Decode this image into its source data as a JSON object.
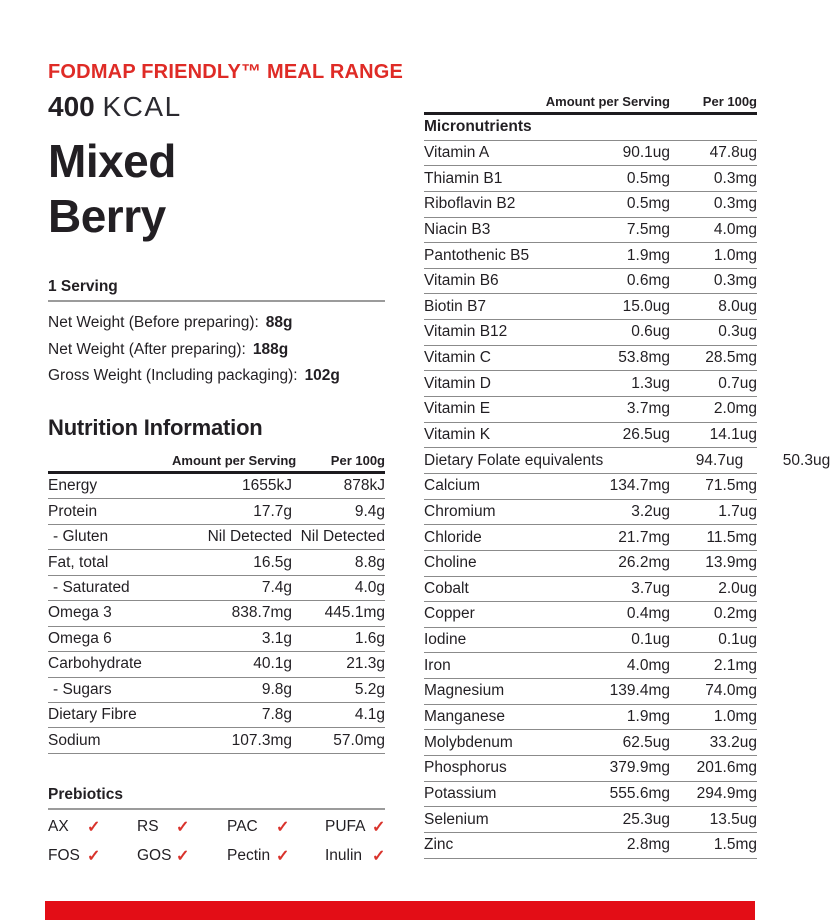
{
  "brand": {
    "range_line": "FODMAP FRIENDLY™ MEAL RANGE",
    "kcal_value": "400",
    "kcal_unit": "KCAL",
    "product_name_line1": "Mixed",
    "product_name_line2": "Berry"
  },
  "serving": {
    "heading": "1 Serving",
    "weights": [
      {
        "label": "Net Weight (Before preparing):",
        "value": "88g"
      },
      {
        "label": "Net Weight (After preparing):",
        "value": "188g"
      },
      {
        "label": "Gross Weight (Including packaging):",
        "value": "102g"
      }
    ]
  },
  "nutrition": {
    "heading": "Nutrition Information",
    "col_serving": "Amount per Serving",
    "col_per100g": "Per 100g",
    "rows": [
      {
        "label": "Energy",
        "serving": "1655kJ",
        "per100g": "878kJ"
      },
      {
        "label": "Protein",
        "serving": "17.7g",
        "per100g": "9.4g"
      },
      {
        "label": "- Gluten",
        "serving": "Nil Detected",
        "per100g": "Nil Detected",
        "indent": true
      },
      {
        "label": "Fat, total",
        "serving": "16.5g",
        "per100g": "8.8g"
      },
      {
        "label": "- Saturated",
        "serving": "7.4g",
        "per100g": "4.0g",
        "indent": true
      },
      {
        "label": "Omega 3",
        "serving": "838.7mg",
        "per100g": "445.1mg"
      },
      {
        "label": "Omega 6",
        "serving": "3.1g",
        "per100g": "1.6g"
      },
      {
        "label": "Carbohydrate",
        "serving": "40.1g",
        "per100g": "21.3g"
      },
      {
        "label": "- Sugars",
        "serving": "9.8g",
        "per100g": "5.2g",
        "indent": true
      },
      {
        "label": "Dietary Fibre",
        "serving": "7.8g",
        "per100g": "4.1g"
      },
      {
        "label": "Sodium",
        "serving": "107.3mg",
        "per100g": "57.0mg"
      }
    ]
  },
  "prebiotics": {
    "heading": "Prebiotics",
    "check_glyph": "✓",
    "items": [
      {
        "label": "AX",
        "checked": true
      },
      {
        "label": "RS",
        "checked": true
      },
      {
        "label": "PAC",
        "checked": true
      },
      {
        "label": "PUFA",
        "checked": true
      },
      {
        "label": "FOS",
        "checked": true
      },
      {
        "label": "GOS",
        "checked": true
      },
      {
        "label": "Pectin",
        "checked": true
      },
      {
        "label": "Inulin",
        "checked": true
      }
    ]
  },
  "micronutrients": {
    "col_serving": "Amount per Serving",
    "col_per100g": "Per 100g",
    "rows": [
      {
        "label": "Micronutrients",
        "serving": "",
        "per100g": "",
        "header": true
      },
      {
        "label": "Vitamin A",
        "serving": "90.1ug",
        "per100g": "47.8ug"
      },
      {
        "label": "Thiamin B1",
        "serving": "0.5mg",
        "per100g": "0.3mg"
      },
      {
        "label": "Riboflavin B2",
        "serving": "0.5mg",
        "per100g": "0.3mg"
      },
      {
        "label": "Niacin B3",
        "serving": "7.5mg",
        "per100g": "4.0mg"
      },
      {
        "label": "Pantothenic B5",
        "serving": "1.9mg",
        "per100g": "1.0mg"
      },
      {
        "label": "Vitamin B6",
        "serving": "0.6mg",
        "per100g": "0.3mg"
      },
      {
        "label": "Biotin B7",
        "serving": "15.0ug",
        "per100g": "8.0ug"
      },
      {
        "label": "Vitamin B12",
        "serving": "0.6ug",
        "per100g": "0.3ug"
      },
      {
        "label": "Vitamin C",
        "serving": "53.8mg",
        "per100g": "28.5mg"
      },
      {
        "label": "Vitamin D",
        "serving": "1.3ug",
        "per100g": "0.7ug"
      },
      {
        "label": "Vitamin E",
        "serving": "3.7mg",
        "per100g": "2.0mg"
      },
      {
        "label": "Vitamin K",
        "serving": "26.5ug",
        "per100g": "14.1ug"
      },
      {
        "label": "Dietary Folate equivalents",
        "serving": "94.7ug",
        "per100g": "50.3ug"
      },
      {
        "label": "Calcium",
        "serving": "134.7mg",
        "per100g": "71.5mg"
      },
      {
        "label": "Chromium",
        "serving": "3.2ug",
        "per100g": "1.7ug"
      },
      {
        "label": "Chloride",
        "serving": "21.7mg",
        "per100g": "11.5mg"
      },
      {
        "label": "Choline",
        "serving": "26.2mg",
        "per100g": "13.9mg"
      },
      {
        "label": "Cobalt",
        "serving": "3.7ug",
        "per100g": "2.0ug"
      },
      {
        "label": "Copper",
        "serving": "0.4mg",
        "per100g": "0.2mg"
      },
      {
        "label": "Iodine",
        "serving": "0.1ug",
        "per100g": "0.1ug"
      },
      {
        "label": "Iron",
        "serving": "4.0mg",
        "per100g": "2.1mg"
      },
      {
        "label": "Magnesium",
        "serving": "139.4mg",
        "per100g": "74.0mg"
      },
      {
        "label": "Manganese",
        "serving": "1.9mg",
        "per100g": "1.0mg"
      },
      {
        "label": "Molybdenum",
        "serving": "62.5ug",
        "per100g": "33.2ug"
      },
      {
        "label": "Phosphorus",
        "serving": "379.9mg",
        "per100g": "201.6mg"
      },
      {
        "label": "Potassium",
        "serving": "555.6mg",
        "per100g": "294.9mg"
      },
      {
        "label": "Selenium",
        "serving": "25.3ug",
        "per100g": "13.5ug"
      },
      {
        "label": "Zinc",
        "serving": "2.8mg",
        "per100g": "1.5mg"
      }
    ]
  },
  "colors": {
    "accent_red_text": "#df2b26",
    "check_red": "#d9332c",
    "footer_bar_red": "#e30d16",
    "text_dark": "#221f23",
    "row_line_gray": "#8b8b8b",
    "header_line_black": "#1d1b1f"
  }
}
